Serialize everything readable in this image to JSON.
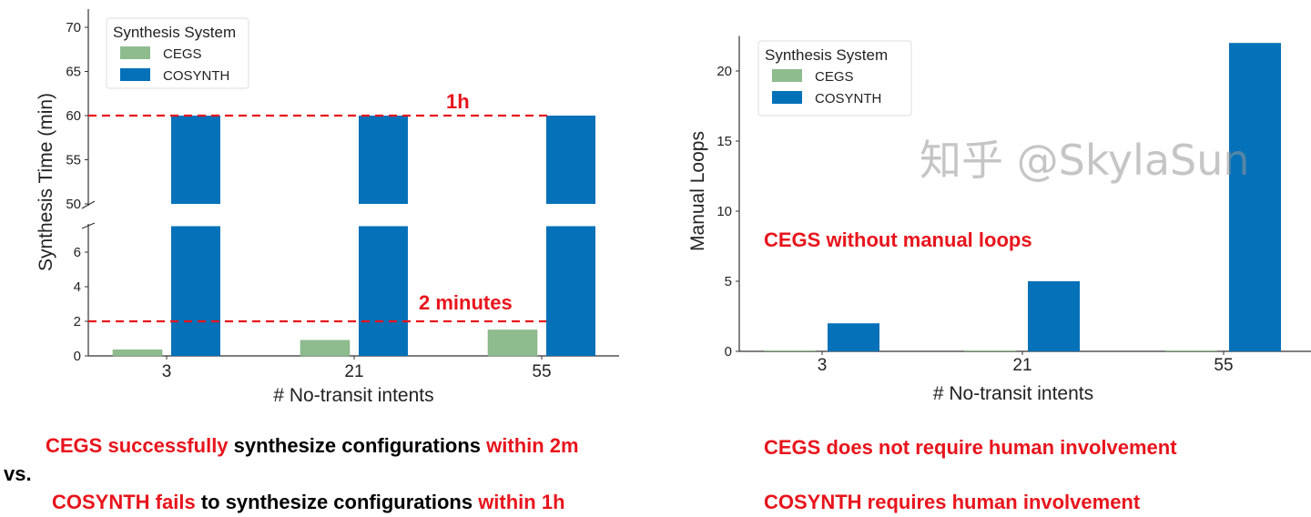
{
  "colors": {
    "CEGS": "#8fbc8f",
    "COSYNTH": "#0571b8",
    "annotation": "#e8141c"
  },
  "chart_data": [
    {
      "type": "bar",
      "categories": [
        "3",
        "21",
        "55"
      ],
      "series": [
        {
          "name": "CEGS",
          "values": [
            0.35,
            0.9,
            1.5
          ]
        },
        {
          "name": "COSYNTH",
          "values": [
            60,
            60,
            60
          ]
        }
      ],
      "xlabel": "# No-transit intents",
      "ylabel": "Synthesis Time (min)",
      "broken_axis": {
        "lower_ylim": [
          0,
          7.5
        ],
        "upper_ylim": [
          50,
          72
        ]
      },
      "yticks_lower": [
        "0",
        "2",
        "4",
        "6"
      ],
      "yticks_upper": [
        "50",
        "55",
        "60",
        "65",
        "70"
      ],
      "legend": {
        "title": "Synthesis System",
        "placement": "top-left"
      },
      "reference_lines": [
        {
          "value": 60,
          "label": "1h",
          "style": "dashed red"
        },
        {
          "value": 2,
          "label": "2 minutes",
          "style": "dashed red"
        }
      ],
      "grid": false
    },
    {
      "type": "bar",
      "categories": [
        "3",
        "21",
        "55"
      ],
      "series": [
        {
          "name": "CEGS",
          "values": [
            0,
            0,
            0
          ]
        },
        {
          "name": "COSYNTH",
          "values": [
            2,
            5,
            22
          ]
        }
      ],
      "xlabel": "# No-transit intents",
      "ylabel": "Manual Loops",
      "ylim": [
        0,
        22.5
      ],
      "yticks": [
        "0",
        "5",
        "10",
        "15",
        "20"
      ],
      "legend": {
        "title": "Synthesis System",
        "placement": "top-left"
      },
      "annotation": "CEGS without manual loops",
      "grid": false
    }
  ],
  "captions": {
    "left_line1": {
      "a": "CEGS successfully",
      "b": " synthesize configurations ",
      "c": "within 2m"
    },
    "vs": "vs.",
    "left_line2": {
      "a": "COSYNTH fails",
      "b": " to synthesize configurations ",
      "c": "within 1h"
    },
    "right_line1": "CEGS does not require human involvement",
    "right_line2": {
      "a": "COSYNTH",
      "b": " requires human involvement"
    }
  },
  "watermark": "知乎 @SkylaSun"
}
